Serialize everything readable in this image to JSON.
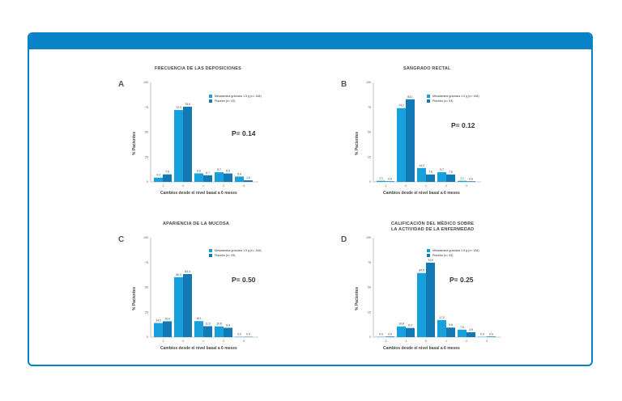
{
  "colors": {
    "border": "#0a82c8",
    "series1": "#18a0dc",
    "series2": "#1279b4"
  },
  "legend": [
    "Mesalamina granulos 1.5 g (n= 184)",
    "Placebo (n= 93)"
  ],
  "chart_data": [
    {
      "type": "bar",
      "letter": "A",
      "title": "FRECUENCIA DE LAS DEPOSICIONES",
      "pvalue": "P= 0.14",
      "xlabel": "Cambios desde el nivel basal a 6 meses",
      "ylabel": "% Pacientes",
      "ylim": [
        0,
        100
      ],
      "yticks": [
        "0",
        "25",
        "50",
        "75",
        "100"
      ],
      "categories": [
        "-1",
        "0",
        "1",
        "2",
        "3"
      ],
      "series": [
        {
          "name": "Mesalamina granulos 1.5 g (n= 184)",
          "values": [
            4.3,
            72.3,
            8.6,
            9.7,
            5.4
          ]
        },
        {
          "name": "Placebo (n= 93)",
          "values": [
            7.6,
            75.6,
            6.7,
            8.5,
            1.6
          ]
        }
      ]
    },
    {
      "type": "bar",
      "letter": "B",
      "title": "SANGRADO RECTAL",
      "pvalue": "P= 0.12",
      "xlabel": "Cambios desde el nivel basal a 6 meses",
      "ylabel": "% Pacientes",
      "ylim": [
        0,
        100
      ],
      "yticks": [
        "0",
        "25",
        "50",
        "75",
        "100"
      ],
      "categories": [
        "-1",
        "0",
        "1",
        "2",
        "3"
      ],
      "series": [
        {
          "name": "Mesalamina granulos 1.5 g (n= 184)",
          "values": [
            1.1,
            74.2,
            14.0,
            9.7,
            1.1
          ]
        },
        {
          "name": "Placebo (n= 93)",
          "values": [
            0.6,
            83.1,
            7.5,
            7.5,
            0.6
          ]
        }
      ]
    },
    {
      "type": "bar",
      "letter": "C",
      "title": "APARIENCIA DE LA MUCOSA",
      "pvalue": "P= 0.50",
      "xlabel": "Cambios desde el nivel basal a 6 meses",
      "ylabel": "% Pacientes",
      "ylim": [
        0,
        100
      ],
      "yticks": [
        "0",
        "25",
        "50",
        "75",
        "100"
      ],
      "categories": [
        "-1",
        "0",
        "1",
        "2",
        "3"
      ],
      "series": [
        {
          "name": "Mesalamina granulos 1.5 g (n= 184)",
          "values": [
            14.2,
            60.3,
            16.1,
            10.8,
            0.0
          ]
        },
        {
          "name": "Placebo (n= 93)",
          "values": [
            15.9,
            63.4,
            11.0,
            9.4,
            0.0
          ]
        }
      ]
    },
    {
      "type": "bar",
      "letter": "D",
      "title": "CALIFICACIÓN DEL MÉDICO SOBRE\nLA ACTIVIDAD DE LA ENFERMEDAD",
      "pvalue": "P= 0.25",
      "xlabel": "Cambios desde el nivel basal a 6 meses",
      "ylabel": "% Pacientes",
      "ylim": [
        0,
        100
      ],
      "yticks": [
        "0",
        "25",
        "50",
        "75",
        "100"
      ],
      "categories": [
        "-2",
        "-1",
        "0",
        "1",
        "2",
        "3"
      ],
      "series": [
        {
          "name": "Mesalamina granulos 1.5 g (n= 184)",
          "values": [
            0.0,
            10.8,
            64.5,
            17.2,
            7.5,
            0.0
          ]
        },
        {
          "name": "Placebo (n= 93)",
          "values": [
            0.6,
            9.2,
            74.9,
            9.6,
            4.9,
            0.6
          ]
        }
      ]
    }
  ]
}
